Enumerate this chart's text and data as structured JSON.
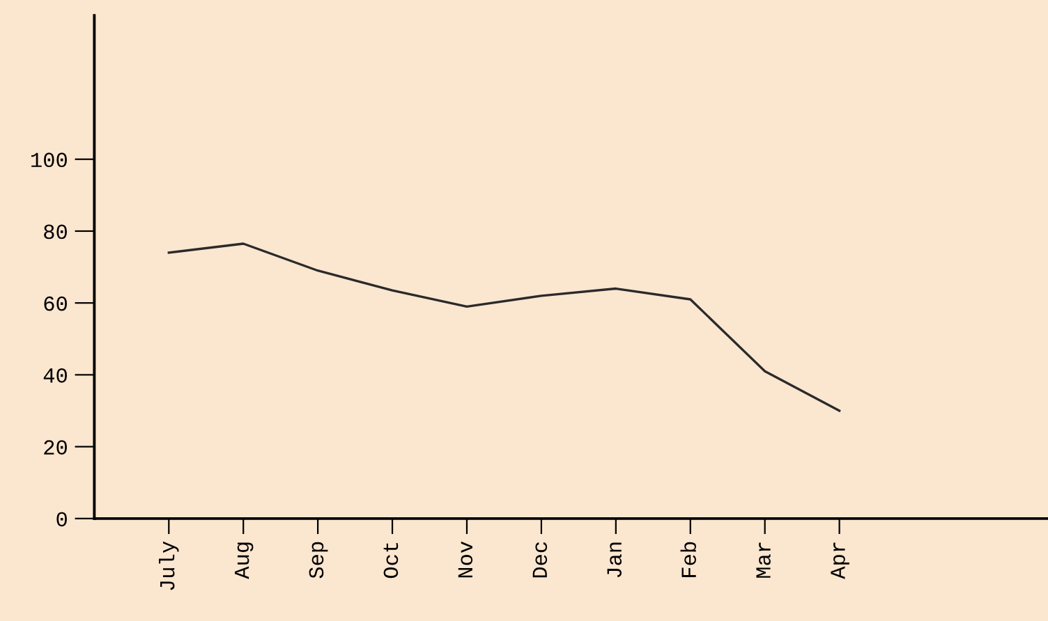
{
  "chart_data": {
    "type": "line",
    "categories": [
      "July",
      "Aug",
      "Sep",
      "Oct",
      "Nov",
      "Dec",
      "Jan",
      "Feb",
      "Mar",
      "Apr"
    ],
    "values": [
      74,
      76.5,
      69,
      63.5,
      59,
      62,
      64,
      61,
      41,
      30
    ],
    "color": "#2a2a2a",
    "ylim": [
      0,
      140
    ],
    "yticks": [
      0,
      20,
      40,
      60,
      80,
      100
    ],
    "grid": false
  }
}
